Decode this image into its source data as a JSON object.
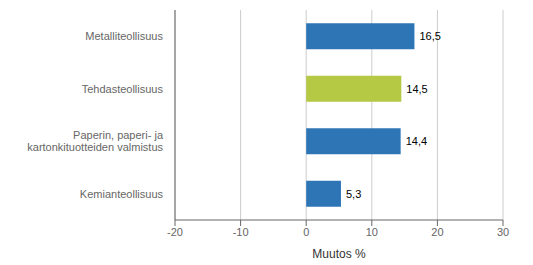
{
  "chart_data": {
    "type": "bar",
    "orientation": "horizontal",
    "categories": [
      "Kemianteollisuus",
      "Paperin, paperi- ja kartonkituotteiden valmistus",
      "Tehdasteollisuus",
      "Metalliteollisuus"
    ],
    "values": [
      5.3,
      14.4,
      14.5,
      16.5
    ],
    "value_labels": [
      "5,3",
      "14,4",
      "14,5",
      "16,5"
    ],
    "colors": [
      "#2e75b6",
      "#2e75b6",
      "#b5c945",
      "#2e75b6"
    ],
    "data_labels": true,
    "xlabel": "Muutos %",
    "xlim": [
      -20,
      30
    ],
    "xticks": [
      -20,
      -10,
      0,
      10,
      20,
      30
    ],
    "grid": true
  }
}
